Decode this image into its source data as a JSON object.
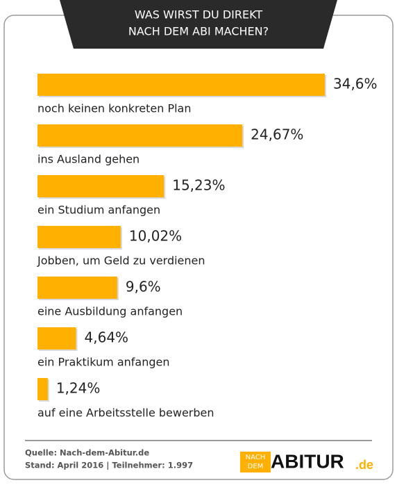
{
  "chart_data": {
    "type": "bar",
    "orientation": "horizontal",
    "title": [
      "WAS WIRST DU DIREKT",
      "NACH DEM ABI MACHEN?"
    ],
    "categories": [
      "noch keinen konkreten Plan",
      "ins Ausland gehen",
      "ein Studium anfangen",
      "Jobben, um Geld zu verdienen",
      "eine Ausbildung anfangen",
      "ein Praktikum anfangen",
      "auf eine Arbeitsstelle bewerben"
    ],
    "values": [
      34.6,
      24.67,
      15.23,
      10.02,
      9.6,
      4.64,
      1.24
    ],
    "value_labels": [
      "34,6%",
      "24,67%",
      "15,23%",
      "10,02%",
      "9,6%",
      "4,64%",
      "1,24%"
    ],
    "color": "#ffb000"
  },
  "footer": {
    "source": "Quelle: Nach-dem-Abitur.de",
    "note": "Stand: April 2016 | Teilnehmer: 1.997",
    "logo": {
      "small_top": "NACH",
      "small_bottom": "DEM",
      "main": "ABITUR",
      "suffix": ".de"
    }
  }
}
